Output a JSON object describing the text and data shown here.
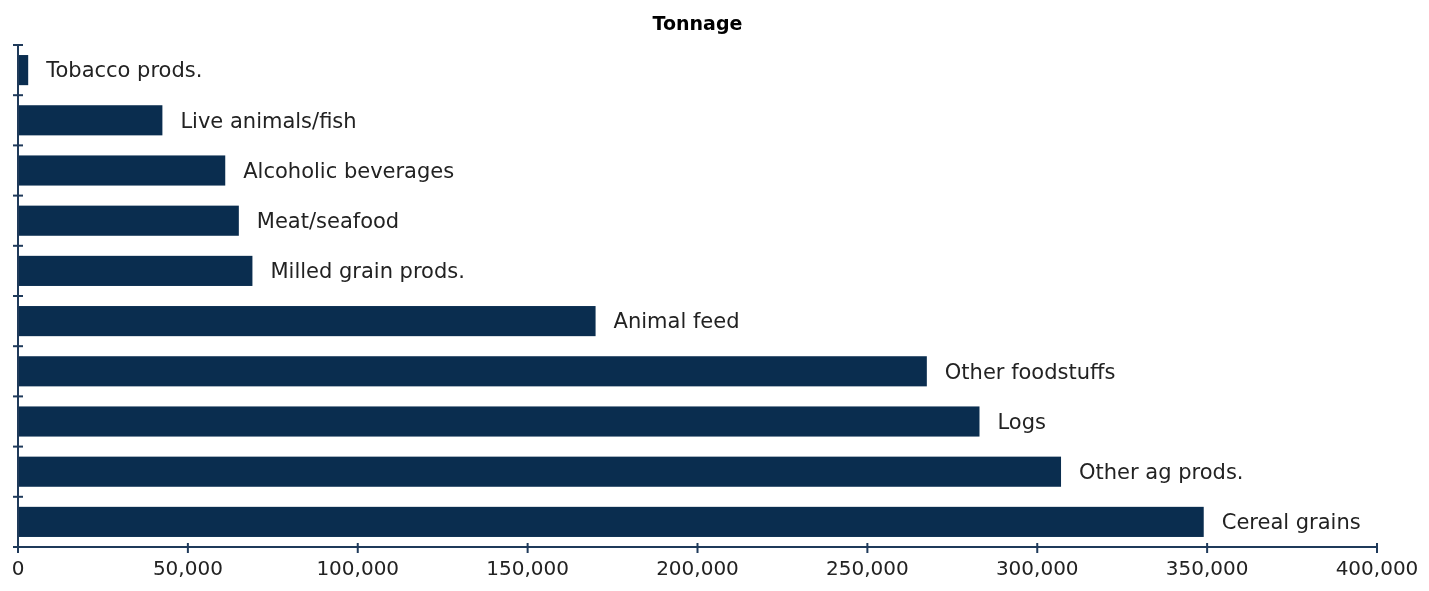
{
  "chart_data": {
    "type": "bar",
    "orientation": "horizontal",
    "title": "Tonnage",
    "categories": [
      "Tobacco prods.",
      "Live animals/fish",
      "Alcoholic beverages",
      "Meat/seafood",
      "Milled grain prods.",
      "Animal feed",
      "Other foodstuffs",
      "Logs",
      "Other ag prods.",
      "Cereal grains"
    ],
    "values": [
      3000,
      42500,
      61000,
      65000,
      69000,
      170000,
      267500,
      283000,
      307000,
      349000
    ],
    "color": "#0a2d4f",
    "xlim": [
      0,
      400000
    ],
    "xticks": [
      {
        "value": 0,
        "label": "0"
      },
      {
        "value": 50000,
        "label": "50,000"
      },
      {
        "value": 100000,
        "label": "100,000"
      },
      {
        "value": 150000,
        "label": "150,000"
      },
      {
        "value": 200000,
        "label": "200,000"
      },
      {
        "value": 250000,
        "label": "250,000"
      },
      {
        "value": 300000,
        "label": "300,000"
      },
      {
        "value": 350000,
        "label": "350,000"
      },
      {
        "value": 400000,
        "label": "400,000"
      }
    ],
    "grid": false
  }
}
